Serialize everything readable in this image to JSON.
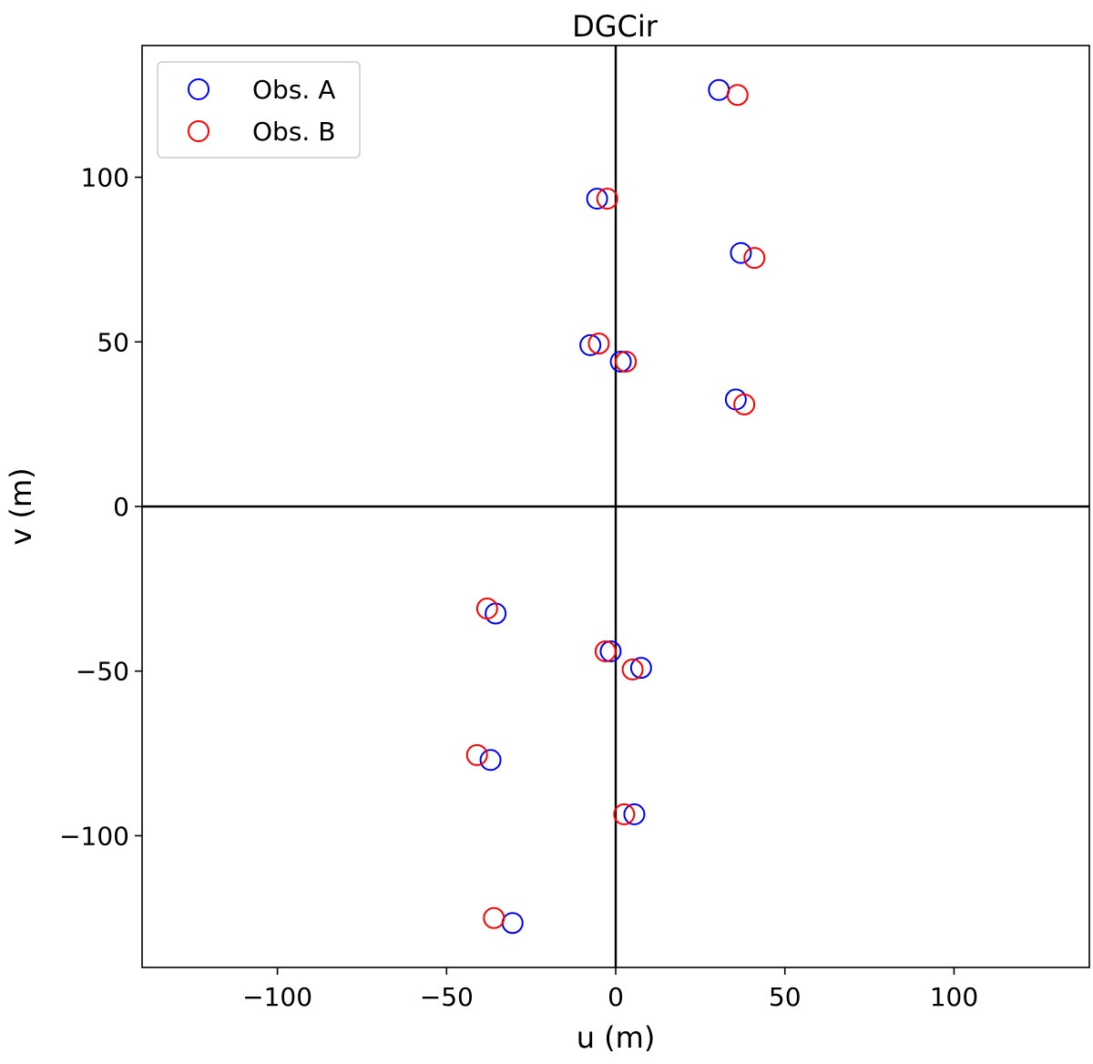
{
  "chart_data": {
    "type": "scatter",
    "title": "DGCir",
    "xlabel": "u (m)",
    "ylabel": "v (m)",
    "xlim": [
      -140,
      140
    ],
    "ylim": [
      -140,
      140
    ],
    "xticks": [
      -100,
      -50,
      0,
      50,
      100
    ],
    "yticks": [
      -100,
      -50,
      0,
      50,
      100
    ],
    "xtick_labels": [
      "−100",
      "−50",
      "0",
      "50",
      "100"
    ],
    "ytick_labels": [
      "−100",
      "−50",
      "0",
      "50",
      "100"
    ],
    "grid": false,
    "zero_lines": true,
    "legend_position": "upper left",
    "marker": "open circle",
    "series": [
      {
        "name": "Obs. A",
        "color": "#0000ff",
        "points": [
          [
            30.5,
            126.5
          ],
          [
            -5.5,
            93.5
          ],
          [
            37,
            77
          ],
          [
            -7.5,
            49
          ],
          [
            1.5,
            44
          ],
          [
            35.5,
            32.5
          ],
          [
            -30.5,
            -126.5
          ],
          [
            5.5,
            -93.5
          ],
          [
            -37,
            -77
          ],
          [
            7.5,
            -49
          ],
          [
            -1.5,
            -44
          ],
          [
            -35.5,
            -32.5
          ]
        ]
      },
      {
        "name": "Obs. B",
        "color": "#ff0000",
        "points": [
          [
            36,
            125
          ],
          [
            -2.5,
            93.5
          ],
          [
            41,
            75.5
          ],
          [
            -5,
            49.5
          ],
          [
            3,
            44
          ],
          [
            38,
            31
          ],
          [
            -36,
            -125
          ],
          [
            2.5,
            -93.5
          ],
          [
            -41,
            -75.5
          ],
          [
            5,
            -49.5
          ],
          [
            -3,
            -44
          ],
          [
            -38,
            -31
          ]
        ]
      }
    ]
  }
}
